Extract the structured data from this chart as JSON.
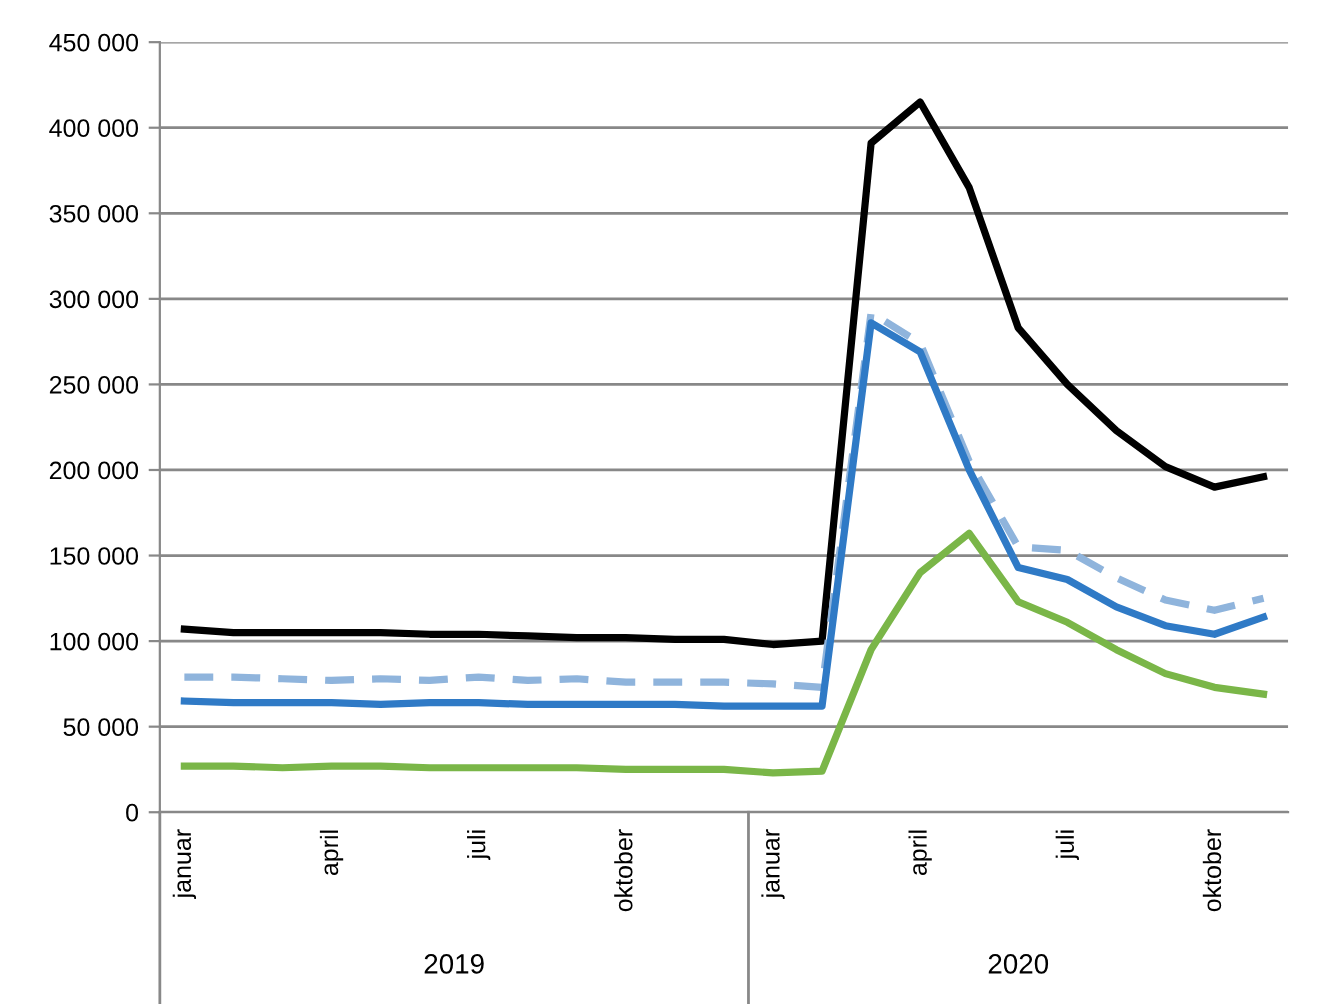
{
  "chart_data": {
    "type": "line",
    "categories": [
      "januar",
      null,
      null,
      "april",
      null,
      null,
      "juli",
      null,
      null,
      "oktober",
      null,
      null,
      "januar",
      null,
      null,
      "april",
      null,
      null,
      "juli",
      null,
      null,
      "oktober",
      null
    ],
    "series": [
      {
        "color": "#000000",
        "line_style": "solid",
        "values": [
          107000,
          105000,
          105000,
          105000,
          105000,
          104000,
          104000,
          103000,
          102000,
          102000,
          101000,
          101000,
          98000,
          100000,
          391000,
          415000,
          365000,
          283000,
          250000,
          223000,
          202000,
          190000,
          196000
        ]
      },
      {
        "color": "#8fb4dc",
        "line_style": "dashed",
        "values": [
          79000,
          79000,
          78000,
          77000,
          78000,
          77000,
          79000,
          77000,
          78000,
          76000,
          76000,
          76000,
          75000,
          73000,
          292000,
          274000,
          205000,
          155000,
          153000,
          137000,
          124000,
          118000,
          125000
        ]
      },
      {
        "color": "#2f7ac6",
        "line_style": "solid",
        "values": [
          65000,
          64000,
          64000,
          64000,
          63000,
          64000,
          64000,
          63000,
          63000,
          63000,
          63000,
          62000,
          62000,
          62000,
          286000,
          269000,
          200000,
          143000,
          136000,
          120000,
          109000,
          104000,
          114000
        ]
      },
      {
        "color": "#7ab648",
        "line_style": "solid",
        "values": [
          27000,
          27000,
          26000,
          27000,
          27000,
          26000,
          26000,
          26000,
          26000,
          25000,
          25000,
          25000,
          23000,
          24000,
          95000,
          140000,
          163000,
          123000,
          111000,
          95000,
          81000,
          73000,
          69000
        ]
      }
    ],
    "ylim": [
      0,
      450000
    ],
    "yticks": [
      0,
      {
        "value": 50000,
        "label": "50 000"
      },
      {
        "value": 100000,
        "label": "100 000"
      },
      {
        "value": 150000,
        "label": "150 000"
      },
      {
        "value": 200000,
        "label": "200 000"
      },
      {
        "value": 250000,
        "label": "250 000"
      },
      {
        "value": 300000,
        "label": "300 000"
      },
      {
        "value": 350000,
        "label": "350 000"
      },
      {
        "value": 400000,
        "label": "400 000"
      },
      {
        "value": 450000,
        "label": "450 000"
      }
    ],
    "grid": "y",
    "legend": false,
    "marker": "none",
    "annotations": [
      "2019",
      "2020"
    ]
  }
}
